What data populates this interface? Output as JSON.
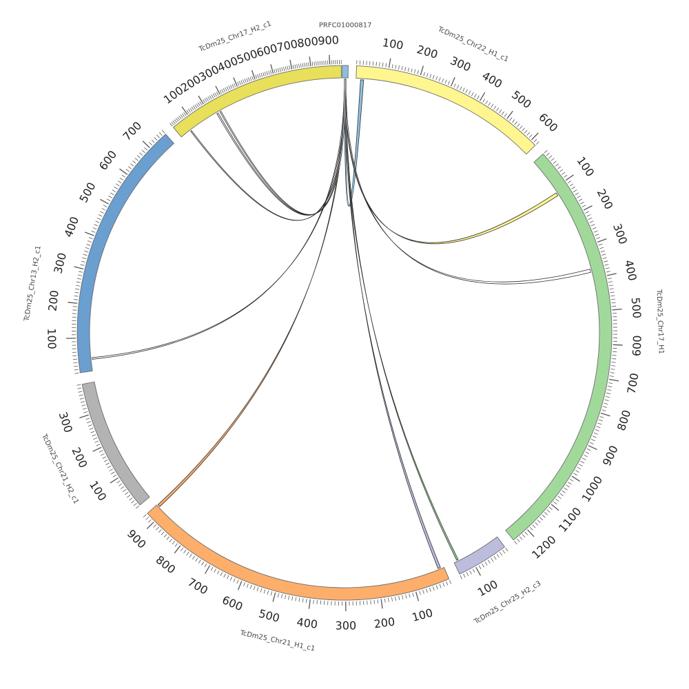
{
  "chart_data": {
    "type": "chord",
    "title": "",
    "segments": [
      {
        "name": "PRFC01000817",
        "length": 10,
        "color": "#8fbfde",
        "label_mode": "top",
        "tick_step": null
      },
      {
        "name": "TcDm25_Chr22_H1_c1",
        "length": 620,
        "color": "#fff68f",
        "tick_step": 100
      },
      {
        "name": "TcDm25_Chr17_H1",
        "length": 1250,
        "color": "#a1d99b",
        "tick_step": 100
      },
      {
        "name": "TcDm25_Chr25_H2_c3",
        "length": 150,
        "color": "#bcbddc",
        "tick_step": 100
      },
      {
        "name": "TcDm25_Chr21_H1_c1",
        "length": 930,
        "color": "#fdae6b",
        "tick_step": 100
      },
      {
        "name": "TcDm25_Chr21_H2_c1",
        "length": 390,
        "color": "#b3b3b3",
        "tick_step": 100
      },
      {
        "name": "TcDm25_Chr13_H2_c1",
        "length": 760,
        "color": "#6a9fd0",
        "tick_step": 100
      },
      {
        "name": "TcDm25_Chr17_H2_c1",
        "length": 960,
        "color": "#e8df5a",
        "tick_step": 100
      }
    ],
    "links": [
      {
        "source": "PRFC01000817",
        "target": "TcDm25_Chr22_H1_c1",
        "target_pos": [
          15,
          25
        ],
        "color": "#8fbfde"
      },
      {
        "source": "PRFC01000817",
        "target": "TcDm25_Chr17_H1",
        "target_pos": [
          115,
          125
        ],
        "color": "#fff68f"
      },
      {
        "source": "PRFC01000817",
        "target": "TcDm25_Chr17_H1",
        "target_pos": [
          370,
          380
        ],
        "color": "#ffffff"
      },
      {
        "source": "PRFC01000817",
        "target": "TcDm25_Chr25_H2_c3",
        "target_pos": [
          135,
          140
        ],
        "color": "#a1d99b"
      },
      {
        "source": "PRFC01000817",
        "target": "TcDm25_Chr21_H1_c1",
        "target_pos": [
          10,
          18
        ],
        "color": "#bcbddc"
      },
      {
        "source": "PRFC01000817",
        "target": "TcDm25_Chr21_H1_c1",
        "target_pos": [
          920,
          928
        ],
        "color": "#fdae6b"
      },
      {
        "source": "PRFC01000817",
        "target": "TcDm25_Chr13_H2_c1",
        "target_pos": [
          35,
          40
        ],
        "color": "#ffffff"
      },
      {
        "source": "PRFC01000817",
        "target": "TcDm25_Chr17_H2_c1",
        "target_pos": [
          60,
          66
        ],
        "color": "#ffffff"
      },
      {
        "source": "PRFC01000817",
        "target": "TcDm25_Chr17_H2_c1",
        "target_pos": [
          235,
          243
        ],
        "color": "#ffffff"
      },
      {
        "source": "PRFC01000817",
        "target": "TcDm25_Chr17_H2_c1",
        "target_pos": [
          255,
          262
        ],
        "color": "#ffffff"
      }
    ]
  }
}
